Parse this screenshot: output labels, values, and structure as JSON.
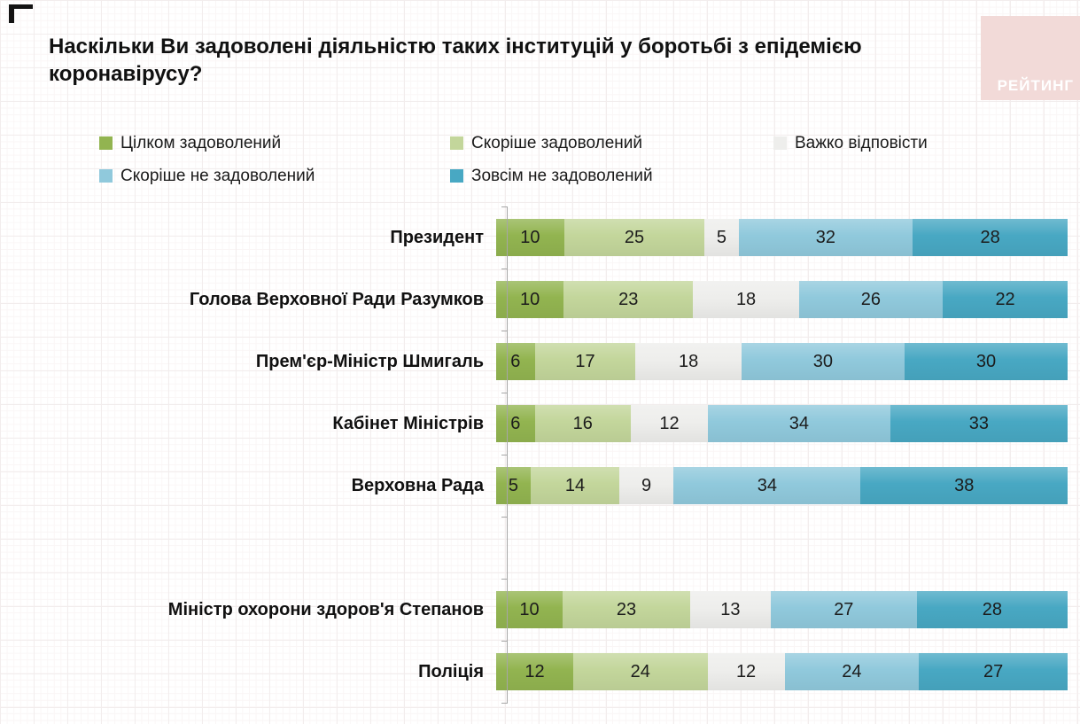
{
  "title": "Наскільки Ви задоволені діяльністю таких інституцій у боротьбі з епідемією коронавірусу?",
  "logo": {
    "text": "РЕЙТИНГ",
    "bg_color": "#f2dad8",
    "text_color": "#ffffff"
  },
  "colors": {
    "fully_satisfied": "#92b450",
    "rather_satisfied": "#c3d69b",
    "hard_to_say": "#eeeeec",
    "rather_not_satisfied": "#90c9dc",
    "not_satisfied": "#48a8c3",
    "axis": "#a6a6a6"
  },
  "legend": [
    {
      "key": "fully_satisfied",
      "label": "Цілком задоволений"
    },
    {
      "key": "rather_satisfied",
      "label": "Скоріше задоволений"
    },
    {
      "key": "hard_to_say",
      "label": "Важко відповісти"
    },
    {
      "key": "rather_not_satisfied",
      "label": "Скоріше не задоволений"
    },
    {
      "key": "not_satisfied",
      "label": "Зовсім не задоволений"
    }
  ],
  "chart_data": {
    "type": "bar",
    "orientation": "horizontal",
    "stacked": true,
    "title": "Наскільки Ви задоволені діяльністю таких інституцій у боротьбі з епідемією коронавірусу?",
    "xlim": [
      0,
      100
    ],
    "grid": false,
    "legend_position": "top",
    "series_keys": [
      "fully_satisfied",
      "rather_satisfied",
      "hard_to_say",
      "rather_not_satisfied",
      "not_satisfied"
    ],
    "series_names": [
      "Цілком задоволений",
      "Скоріше задоволений",
      "Важко відповісти",
      "Скоріше не задоволений",
      "Зовсім не задоволений"
    ],
    "categories": [
      "Президент",
      "Голова Верховної Ради Разумков",
      "Прем'єр-Міністр Шмигаль",
      "Кабінет Міністрів",
      "Верховна Рада",
      "Міністр охорони здоров'я Степанов",
      "Поліція"
    ],
    "rows": [
      {
        "category": "Президент",
        "values": [
          10,
          25,
          5,
          32,
          28
        ]
      },
      {
        "category": "Голова Верховної Ради Разумков",
        "values": [
          10,
          23,
          18,
          26,
          22
        ]
      },
      {
        "category": "Прем'єр-Міністр Шмигаль",
        "values": [
          6,
          17,
          18,
          30,
          30
        ]
      },
      {
        "category": "Кабінет Міністрів",
        "values": [
          6,
          16,
          12,
          34,
          33
        ]
      },
      {
        "category": "Верховна Рада",
        "values": [
          5,
          14,
          9,
          34,
          38
        ]
      },
      {
        "category": "",
        "values": null,
        "spacer": true
      },
      {
        "category": "Міністр охорони здоров'я Степанов",
        "values": [
          10,
          23,
          13,
          27,
          28
        ]
      },
      {
        "category": "Поліція",
        "values": [
          12,
          24,
          12,
          24,
          27
        ]
      }
    ]
  }
}
